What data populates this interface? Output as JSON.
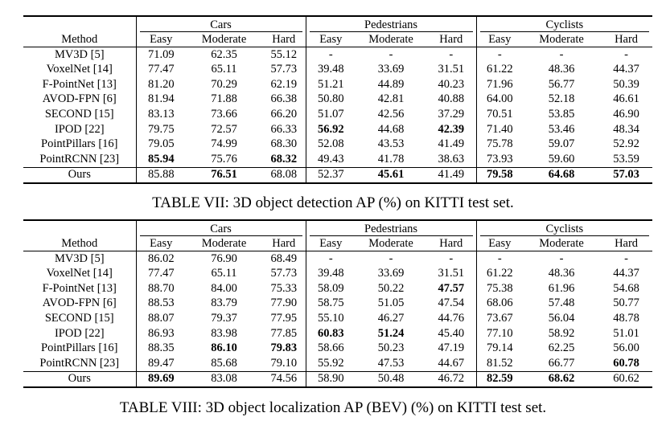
{
  "table7": {
    "caption": "TABLE VII: 3D object detection AP (%) on KITTI test set.",
    "method_header": "Method",
    "groups": [
      "Cars",
      "Pedestrians",
      "Cyclists"
    ],
    "subheaders": [
      "Easy",
      "Moderate",
      "Hard"
    ],
    "rows": [
      {
        "method": "MV3D [5]",
        "values": [
          "71.09",
          "62.35",
          "55.12",
          "-",
          "-",
          "-",
          "-",
          "-",
          "-"
        ],
        "bold": []
      },
      {
        "method": "VoxelNet [14]",
        "values": [
          "77.47",
          "65.11",
          "57.73",
          "39.48",
          "33.69",
          "31.51",
          "61.22",
          "48.36",
          "44.37"
        ],
        "bold": []
      },
      {
        "method": "F-PointNet [13]",
        "values": [
          "81.20",
          "70.29",
          "62.19",
          "51.21",
          "44.89",
          "40.23",
          "71.96",
          "56.77",
          "50.39"
        ],
        "bold": []
      },
      {
        "method": "AVOD-FPN [6]",
        "values": [
          "81.94",
          "71.88",
          "66.38",
          "50.80",
          "42.81",
          "40.88",
          "64.00",
          "52.18",
          "46.61"
        ],
        "bold": []
      },
      {
        "method": "SECOND [15]",
        "values": [
          "83.13",
          "73.66",
          "66.20",
          "51.07",
          "42.56",
          "37.29",
          "70.51",
          "53.85",
          "46.90"
        ],
        "bold": []
      },
      {
        "method": "IPOD [22]",
        "values": [
          "79.75",
          "72.57",
          "66.33",
          "56.92",
          "44.68",
          "42.39",
          "71.40",
          "53.46",
          "48.34"
        ],
        "bold": [
          3,
          5
        ]
      },
      {
        "method": "PointPillars [16]",
        "values": [
          "79.05",
          "74.99",
          "68.30",
          "52.08",
          "43.53",
          "41.49",
          "75.78",
          "59.07",
          "52.92"
        ],
        "bold": []
      },
      {
        "method": "PointRCNN [23]",
        "values": [
          "85.94",
          "75.76",
          "68.32",
          "49.43",
          "41.78",
          "38.63",
          "73.93",
          "59.60",
          "53.59"
        ],
        "bold": [
          0,
          2
        ]
      },
      {
        "method": "Ours",
        "values": [
          "85.88",
          "76.51",
          "68.08",
          "52.37",
          "45.61",
          "41.49",
          "79.58",
          "64.68",
          "57.03"
        ],
        "bold": [
          1,
          4,
          6,
          7,
          8
        ]
      }
    ]
  },
  "table8": {
    "caption": "TABLE VIII: 3D object localization AP (BEV) (%) on KITTI test set.",
    "method_header": "Method",
    "groups": [
      "Cars",
      "Pedestrians",
      "Cyclists"
    ],
    "subheaders": [
      "Easy",
      "Moderate",
      "Hard"
    ],
    "rows": [
      {
        "method": "MV3D [5]",
        "values": [
          "86.02",
          "76.90",
          "68.49",
          "-",
          "-",
          "-",
          "-",
          "-",
          "-"
        ],
        "bold": []
      },
      {
        "method": "VoxelNet [14]",
        "values": [
          "77.47",
          "65.11",
          "57.73",
          "39.48",
          "33.69",
          "31.51",
          "61.22",
          "48.36",
          "44.37"
        ],
        "bold": []
      },
      {
        "method": "F-PointNet [13]",
        "values": [
          "88.70",
          "84.00",
          "75.33",
          "58.09",
          "50.22",
          "47.57",
          "75.38",
          "61.96",
          "54.68"
        ],
        "bold": [
          5
        ]
      },
      {
        "method": "AVOD-FPN [6]",
        "values": [
          "88.53",
          "83.79",
          "77.90",
          "58.75",
          "51.05",
          "47.54",
          "68.06",
          "57.48",
          "50.77"
        ],
        "bold": []
      },
      {
        "method": "SECOND [15]",
        "values": [
          "88.07",
          "79.37",
          "77.95",
          "55.10",
          "46.27",
          "44.76",
          "73.67",
          "56.04",
          "48.78"
        ],
        "bold": []
      },
      {
        "method": "IPOD [22]",
        "values": [
          "86.93",
          "83.98",
          "77.85",
          "60.83",
          "51.24",
          "45.40",
          "77.10",
          "58.92",
          "51.01"
        ],
        "bold": [
          3,
          4
        ]
      },
      {
        "method": "PointPillars [16]",
        "values": [
          "88.35",
          "86.10",
          "79.83",
          "58.66",
          "50.23",
          "47.19",
          "79.14",
          "62.25",
          "56.00"
        ],
        "bold": [
          1,
          2
        ]
      },
      {
        "method": "PointRCNN [23]",
        "values": [
          "89.47",
          "85.68",
          "79.10",
          "55.92",
          "47.53",
          "44.67",
          "81.52",
          "66.77",
          "60.78"
        ],
        "bold": [
          8
        ]
      },
      {
        "method": "Ours",
        "values": [
          "89.69",
          "83.08",
          "74.56",
          "58.90",
          "50.48",
          "46.72",
          "82.59",
          "68.62",
          "60.62"
        ],
        "bold": [
          0,
          6,
          7
        ]
      }
    ]
  }
}
